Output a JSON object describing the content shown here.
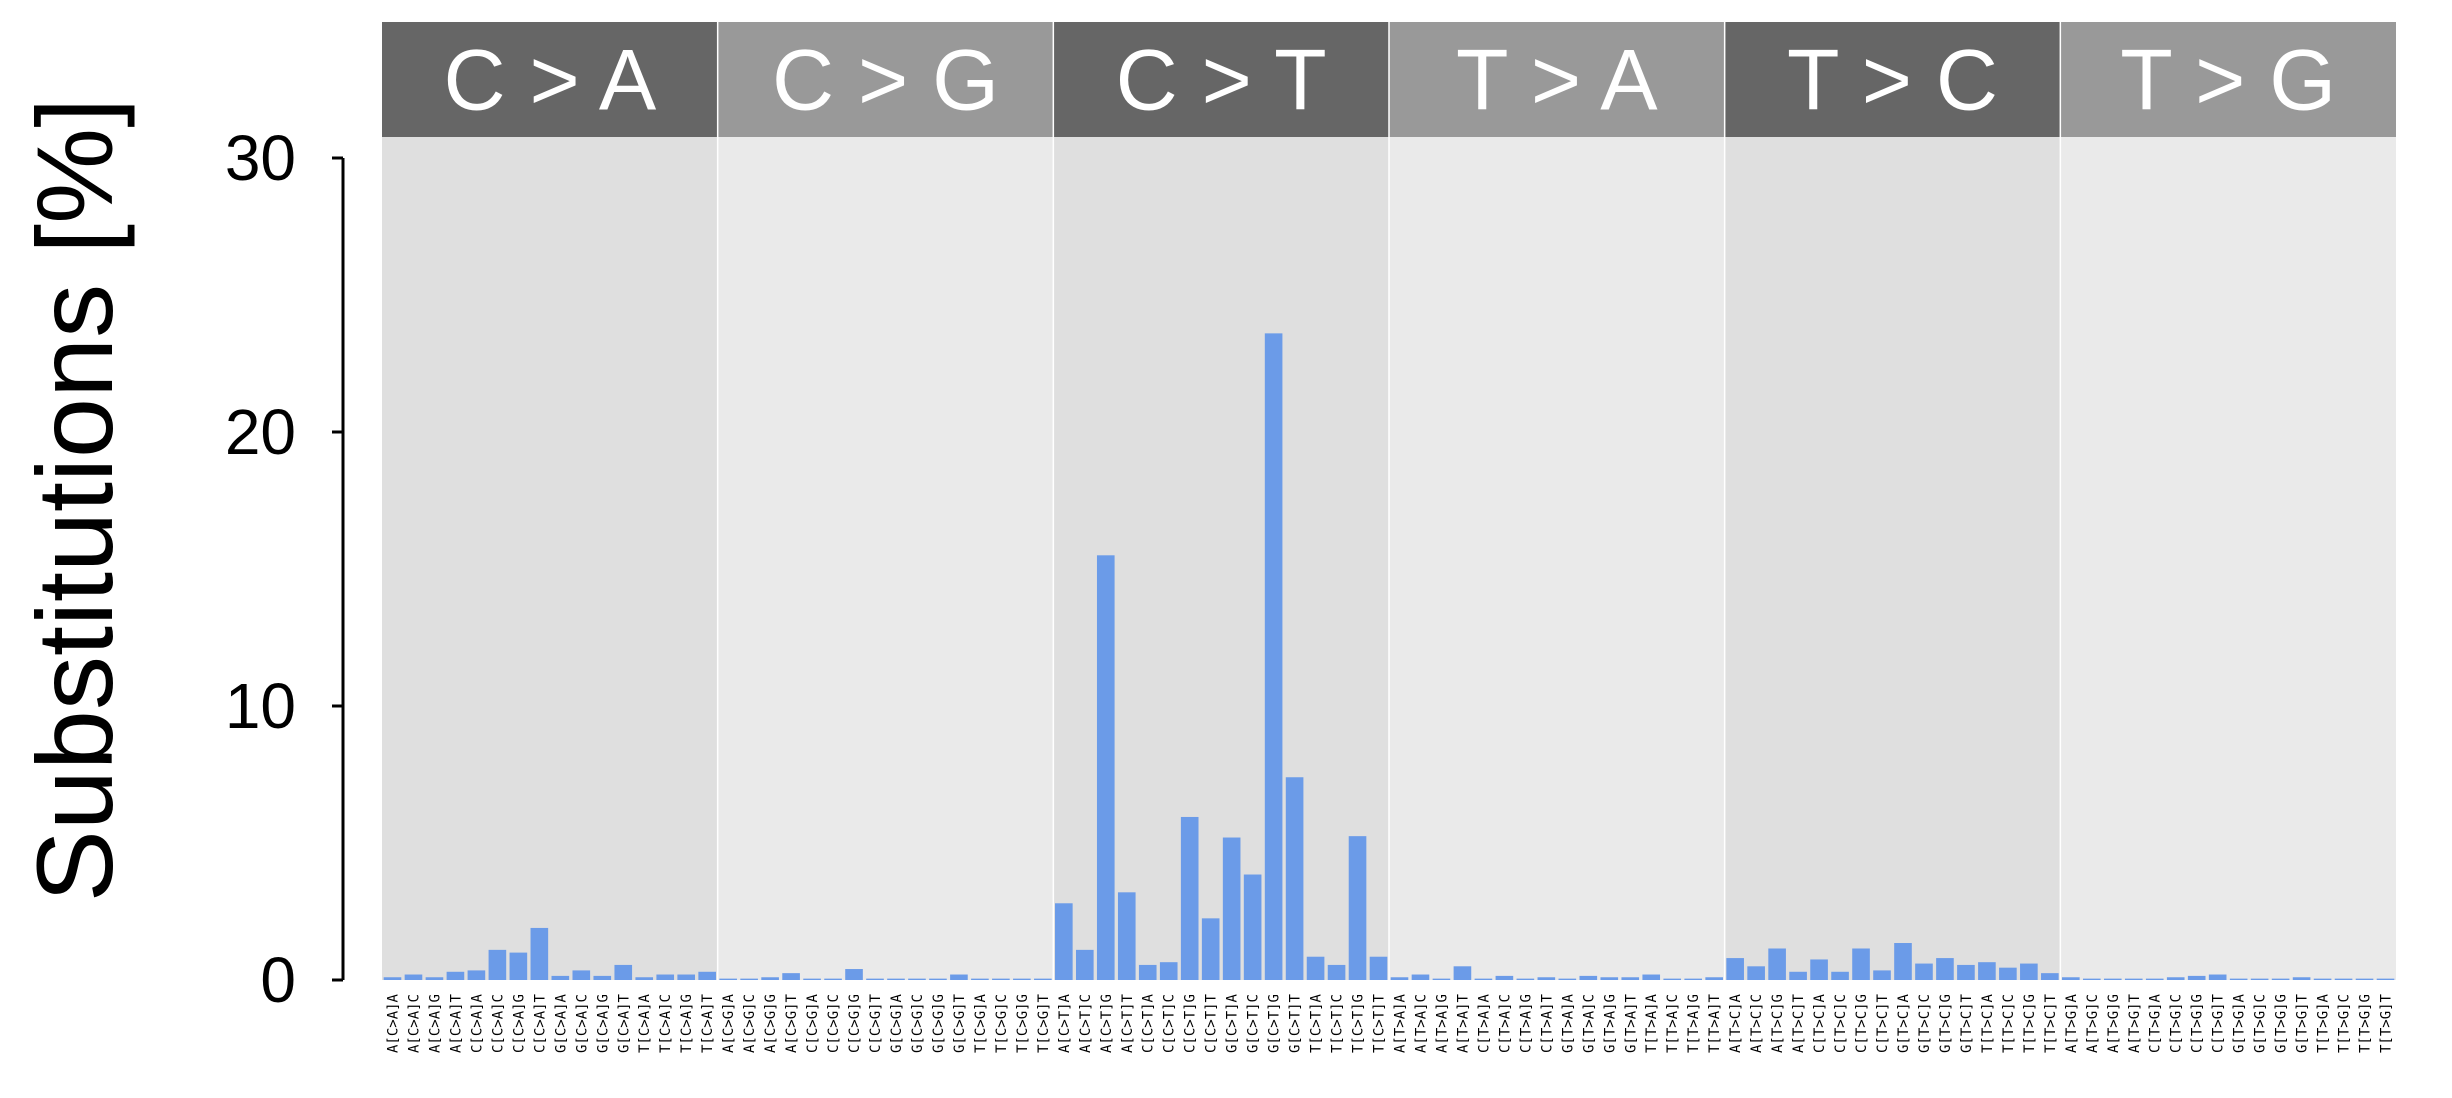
{
  "chart_data": {
    "type": "bar",
    "ylabel": "Substitutions [%]",
    "ylim": [
      0,
      30
    ],
    "yticks": [
      "0",
      "10",
      "20",
      "30"
    ],
    "grid": false,
    "colors": {
      "bar": "#6b9be8",
      "panel_bg_dark": "#dfdfdf",
      "panel_bg_light": "#eaeaea",
      "header_dark": "#666666",
      "header_light": "#999999"
    },
    "panels": [
      {
        "title": "C > A",
        "categories": [
          "A[C>A]A",
          "A[C>A]C",
          "A[C>A]G",
          "A[C>A]T",
          "C[C>A]A",
          "C[C>A]C",
          "C[C>A]G",
          "C[C>A]T",
          "G[C>A]A",
          "G[C>A]C",
          "G[C>A]G",
          "G[C>A]T",
          "T[C>A]A",
          "T[C>A]C",
          "T[C>A]G",
          "T[C>A]T"
        ],
        "values": [
          0.1,
          0.2,
          0.1,
          0.3,
          0.35,
          1.1,
          1.0,
          1.9,
          0.15,
          0.35,
          0.15,
          0.55,
          0.1,
          0.2,
          0.2,
          0.3
        ]
      },
      {
        "title": "C > G",
        "categories": [
          "A[C>G]A",
          "A[C>G]C",
          "A[C>G]G",
          "A[C>G]T",
          "C[C>G]A",
          "C[C>G]C",
          "C[C>G]G",
          "C[C>G]T",
          "G[C>G]A",
          "G[C>G]C",
          "G[C>G]G",
          "G[C>G]T",
          "T[C>G]A",
          "T[C>G]C",
          "T[C>G]G",
          "T[C>G]T"
        ],
        "values": [
          0.05,
          0.05,
          0.1,
          0.25,
          0.05,
          0.05,
          0.4,
          0.05,
          0.05,
          0.05,
          0.05,
          0.2,
          0.05,
          0.05,
          0.05,
          0.05
        ]
      },
      {
        "title": "C > T",
        "categories": [
          "A[C>T]A",
          "A[C>T]C",
          "A[C>T]G",
          "A[C>T]T",
          "C[C>T]A",
          "C[C>T]C",
          "C[C>T]G",
          "C[C>T]T",
          "G[C>T]A",
          "G[C>T]C",
          "G[C>T]G",
          "G[C>T]T",
          "T[C>T]A",
          "T[C>T]C",
          "T[C>T]G",
          "T[C>T]T"
        ],
        "values": [
          2.8,
          1.1,
          15.5,
          3.2,
          0.55,
          0.65,
          5.95,
          2.25,
          5.2,
          3.85,
          23.6,
          7.4,
          0.85,
          0.55,
          5.25,
          0.85
        ]
      },
      {
        "title": "T > A",
        "categories": [
          "A[T>A]A",
          "A[T>A]C",
          "A[T>A]G",
          "A[T>A]T",
          "C[T>A]A",
          "C[T>A]C",
          "C[T>A]G",
          "C[T>A]T",
          "G[T>A]A",
          "G[T>A]C",
          "G[T>A]G",
          "G[T>A]T",
          "T[T>A]A",
          "T[T>A]C",
          "T[T>A]G",
          "T[T>A]T"
        ],
        "values": [
          0.1,
          0.2,
          0.05,
          0.5,
          0.05,
          0.15,
          0.05,
          0.1,
          0.05,
          0.15,
          0.1,
          0.1,
          0.2,
          0.05,
          0.05,
          0.1
        ]
      },
      {
        "title": "T > C",
        "categories": [
          "A[T>C]A",
          "A[T>C]C",
          "A[T>C]G",
          "A[T>C]T",
          "C[T>C]A",
          "C[T>C]C",
          "C[T>C]G",
          "C[T>C]T",
          "G[T>C]A",
          "G[T>C]C",
          "G[T>C]G",
          "G[T>C]T",
          "T[T>C]A",
          "T[T>C]C",
          "T[T>C]G",
          "T[T>C]T"
        ],
        "values": [
          0.8,
          0.5,
          1.15,
          0.3,
          0.75,
          0.3,
          1.15,
          0.35,
          1.35,
          0.6,
          0.8,
          0.55,
          0.65,
          0.45,
          0.6,
          0.25
        ]
      },
      {
        "title": "T > G",
        "categories": [
          "A[T>G]A",
          "A[T>G]C",
          "A[T>G]G",
          "A[T>G]T",
          "C[T>G]A",
          "C[T>G]C",
          "C[T>G]G",
          "C[T>G]T",
          "G[T>G]A",
          "G[T>G]C",
          "G[T>G]G",
          "G[T>G]T",
          "T[T>G]A",
          "T[T>G]C",
          "T[T>G]G",
          "T[T>G]T"
        ],
        "values": [
          0.1,
          0.05,
          0.05,
          0.05,
          0.05,
          0.1,
          0.15,
          0.2,
          0.05,
          0.05,
          0.05,
          0.1,
          0.05,
          0.05,
          0.05,
          0.05
        ]
      }
    ]
  }
}
